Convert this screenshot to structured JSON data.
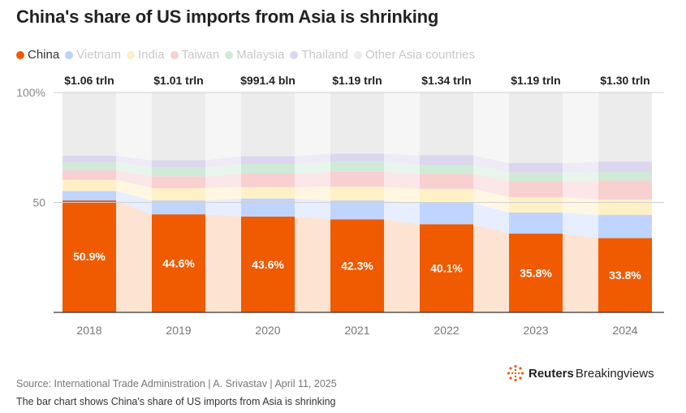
{
  "title": "China's share of US imports from Asia is shrinking",
  "legend": [
    {
      "label": "China",
      "color": "#f05a00"
    },
    {
      "label": "Vietnam",
      "color": "#8ab4ff"
    },
    {
      "label": "India",
      "color": "#ffe7a3"
    },
    {
      "label": "Taiwan",
      "color": "#f6b8b8"
    },
    {
      "label": "Malaysia",
      "color": "#b8e4c4"
    },
    {
      "label": "Thailand",
      "color": "#cfc6e8"
    },
    {
      "label": "Other Asia countries",
      "color": "#e6e6e6"
    }
  ],
  "chart_data": {
    "type": "bar",
    "stacked": true,
    "title": "China's share of US imports from Asia is shrinking",
    "categories": [
      "2018",
      "2019",
      "2020",
      "2021",
      "2022",
      "2023",
      "2024"
    ],
    "totals": [
      "$1.06 trln",
      "$1.01 trln",
      "$991.4 bln",
      "$1.19 trln",
      "$1.34 trln",
      "$1.19 trln",
      "$1.30 trln"
    ],
    "series": [
      {
        "name": "China",
        "color": "#f05a00",
        "values": [
          50.9,
          44.6,
          43.6,
          42.3,
          40.1,
          35.8,
          33.8
        ],
        "labels": [
          "50.9%",
          "44.6%",
          "43.6%",
          "42.3%",
          "40.1%",
          "35.8%",
          "33.8%"
        ]
      },
      {
        "name": "Vietnam",
        "color": "#bfd4ff",
        "values": [
          4.3,
          6.3,
          8.2,
          8.6,
          9.7,
          9.6,
          10.6
        ]
      },
      {
        "name": "India",
        "color": "#fff0c6",
        "values": [
          5.1,
          5.6,
          5.2,
          6.2,
          6.4,
          7.0,
          6.9
        ]
      },
      {
        "name": "Taiwan",
        "color": "#f8d0d0",
        "values": [
          4.3,
          5.4,
          6.1,
          6.8,
          6.8,
          7.2,
          8.7
        ]
      },
      {
        "name": "Malaysia",
        "color": "#cfead6",
        "values": [
          3.6,
          4.1,
          4.4,
          4.6,
          4.1,
          3.9,
          4.0
        ]
      },
      {
        "name": "Thailand",
        "color": "#dcd6ee",
        "values": [
          3.0,
          3.2,
          3.6,
          3.7,
          4.3,
          4.4,
          4.6
        ]
      },
      {
        "name": "Other Asia countries",
        "color": "#ececec",
        "values": [
          28.8,
          30.8,
          28.9,
          27.8,
          28.6,
          32.1,
          31.4
        ]
      }
    ],
    "ylim": [
      0,
      100
    ],
    "yticks": [
      {
        "value": 100,
        "label": "100%"
      },
      {
        "value": 50,
        "label": "50"
      }
    ],
    "xlabel": "",
    "ylabel": ""
  },
  "footer": {
    "source": "Source: International Trade Administration | A. Srivastav | April 11, 2025",
    "caption": "The bar chart shows China's share of US imports from Asia is shrinking",
    "brand_reuters": "Reuters",
    "brand_bv": "Breakingviews"
  }
}
